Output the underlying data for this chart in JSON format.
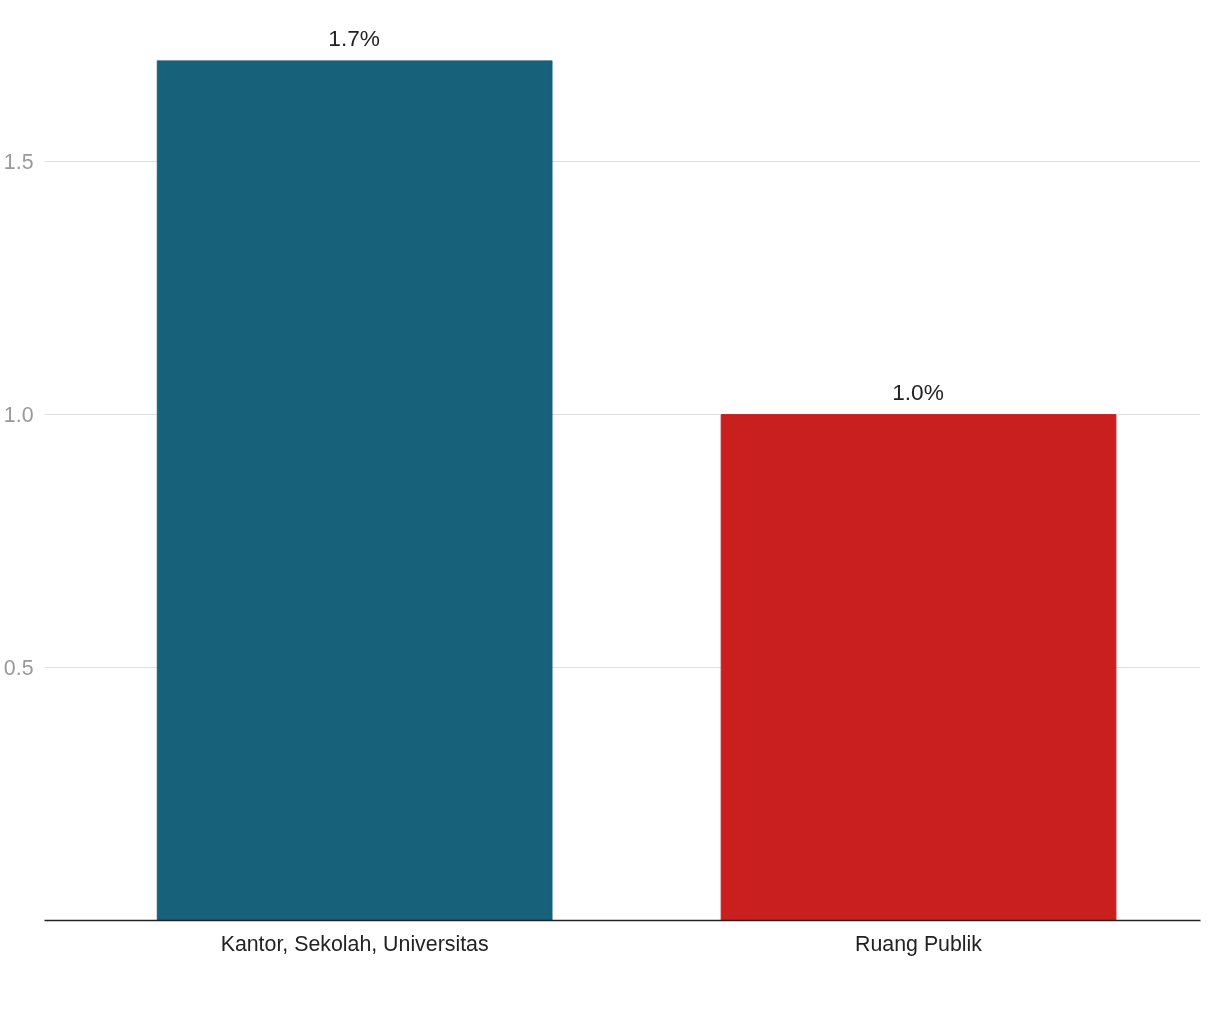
{
  "chart_data": {
    "type": "bar",
    "categories": [
      "Kantor, Sekolah, Universitas",
      "Ruang Publik"
    ],
    "values": [
      1.7,
      1.0
    ],
    "colors": [
      "#17617b",
      "#c91f1f"
    ],
    "value_labels": [
      "1.7%",
      "1.0%"
    ],
    "ylim": [
      0,
      1.7
    ],
    "yticks": [
      {
        "value": 0.5,
        "label": "0.5"
      },
      {
        "value": 1,
        "label": "1.0"
      },
      {
        "value": 1.5,
        "label": "1.5"
      }
    ],
    "grid": "y"
  }
}
